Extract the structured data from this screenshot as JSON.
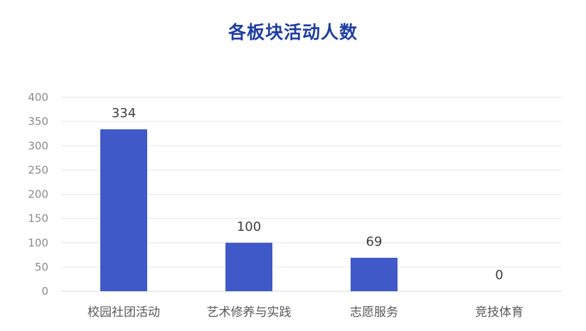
{
  "chart_data": {
    "type": "bar",
    "title": "各板块活动人数",
    "categories": [
      "校园社团活动",
      "艺术修养与实践",
      "志愿服务",
      "竞技体育"
    ],
    "values": [
      334,
      100,
      69,
      0
    ],
    "yticks": [
      0,
      50,
      100,
      150,
      200,
      250,
      300,
      350,
      400
    ],
    "ylim": [
      0,
      400
    ],
    "grid": true,
    "legend": "none",
    "colors": {
      "bar": "#3f5ac8",
      "title": "#1f3ea3",
      "grid": "#e6e6e6",
      "axis": "#d9d9d9"
    }
  }
}
